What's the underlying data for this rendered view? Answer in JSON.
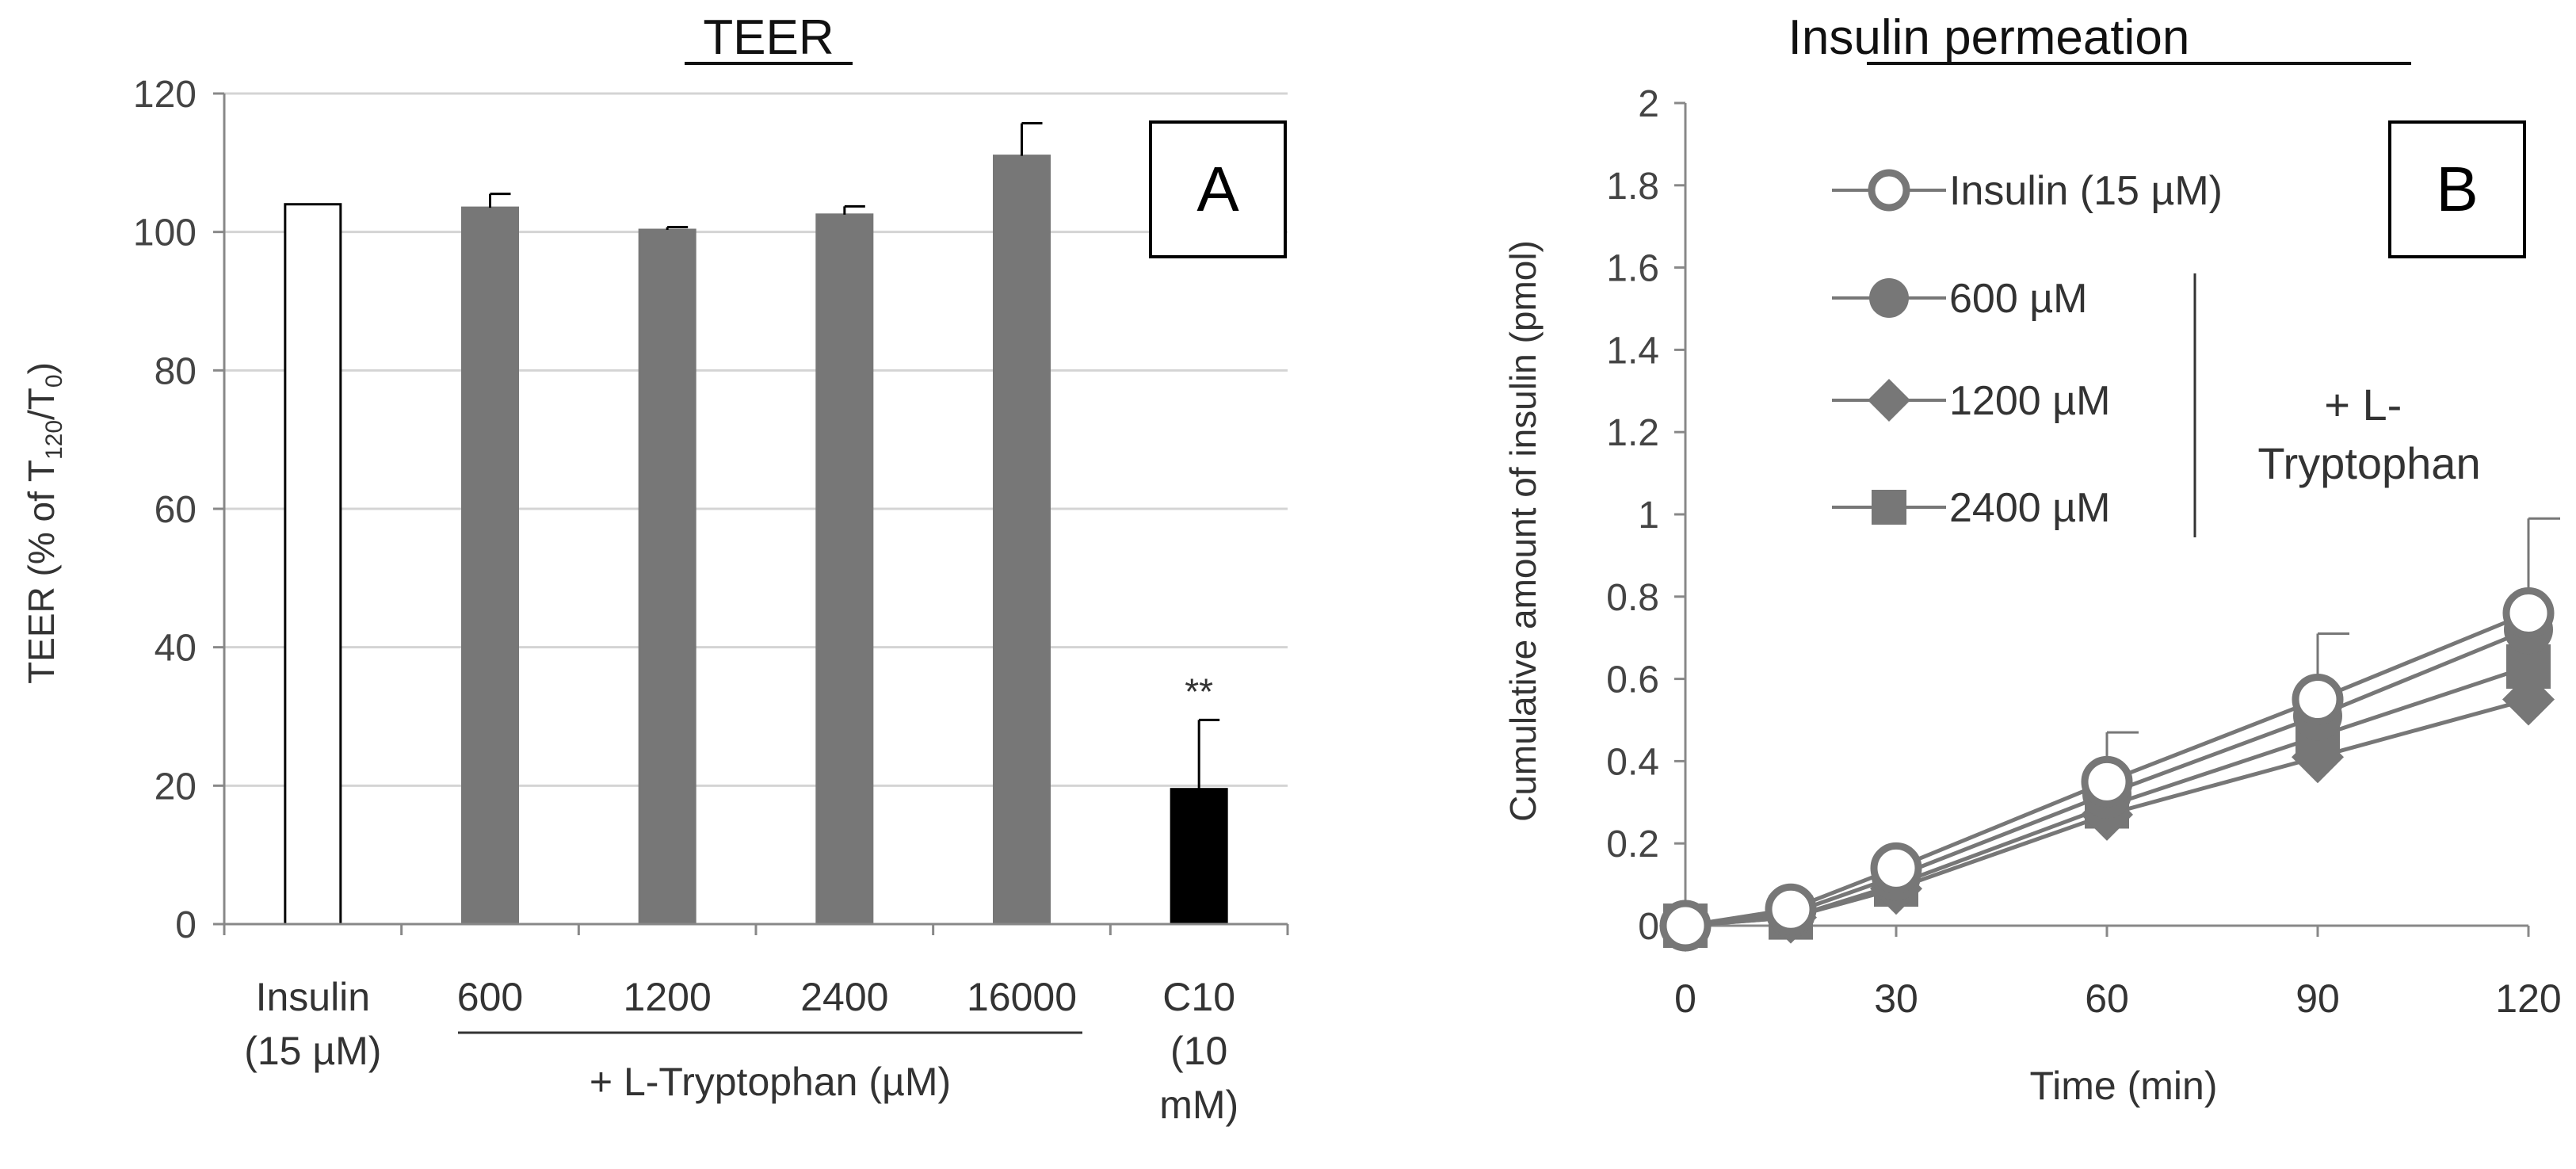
{
  "chart_data": [
    {
      "panel": "A",
      "type": "bar",
      "title": "TEER",
      "ylabel_parts": {
        "prefix": "TEER (% of T",
        "sub1": "120",
        "mid": "/T",
        "sub2": "0",
        "suffix": ")"
      },
      "ylim": [
        0,
        120
      ],
      "yticks": [
        0,
        20,
        40,
        60,
        80,
        100,
        120
      ],
      "categories": [
        {
          "lines": [
            "Insulin",
            "(15 µM)"
          ],
          "value": 104,
          "error": 0,
          "fill": "#ffffff",
          "stroke": "#000000"
        },
        {
          "lines": [
            "600"
          ],
          "value": 103.5,
          "error": 2,
          "fill": "#777777",
          "stroke": "#777777"
        },
        {
          "lines": [
            "1200"
          ],
          "value": 100.3,
          "error": 0.4,
          "fill": "#777777",
          "stroke": "#777777"
        },
        {
          "lines": [
            "2400"
          ],
          "value": 102.5,
          "error": 1.2,
          "fill": "#777777",
          "stroke": "#777777"
        },
        {
          "lines": [
            "16000"
          ],
          "value": 111,
          "error": 4.7,
          "fill": "#777777",
          "stroke": "#777777"
        },
        {
          "lines": [
            "C10",
            "(10",
            "mM)"
          ],
          "value": 19.5,
          "error": 10,
          "fill": "#000000",
          "stroke": "#000000",
          "annotation": "**"
        }
      ],
      "group_label": "+ L-Tryptophan (µM)",
      "panel_label": "A"
    },
    {
      "panel": "B",
      "type": "line",
      "title": "Insulin permeation",
      "xlabel": "Time (min)",
      "ylabel": "Cumulative amount of insulin (pmol)",
      "xlim": [
        0,
        120
      ],
      "xticks": [
        0,
        30,
        60,
        90,
        120
      ],
      "ylim": [
        0,
        2
      ],
      "yticks": [
        "0",
        "0.2",
        "0.4",
        "0.6",
        "0.8",
        "1",
        "1.2",
        "1.4",
        "1.6",
        "1.8",
        "2"
      ],
      "x": [
        0,
        15,
        30,
        60,
        90,
        120
      ],
      "series": [
        {
          "name": "Insulin (15 µM)",
          "marker": "open-circle",
          "values": [
            0,
            0.04,
            0.14,
            0.35,
            0.55,
            0.76
          ],
          "errors": [
            0,
            0,
            0,
            0.12,
            0.16,
            0.23
          ]
        },
        {
          "name": "600 µM",
          "marker": "filled-circle",
          "values": [
            0,
            0.03,
            0.12,
            0.32,
            0.51,
            0.72
          ],
          "errors": [
            0,
            0,
            0,
            0,
            0,
            0
          ]
        },
        {
          "name": "1200 µM",
          "marker": "diamond",
          "values": [
            0,
            0.02,
            0.09,
            0.27,
            0.41,
            0.55
          ],
          "errors": [
            0,
            0,
            0,
            0,
            0,
            0
          ]
        },
        {
          "name": "2400 µM",
          "marker": "square",
          "values": [
            0,
            0.02,
            0.1,
            0.29,
            0.46,
            0.63
          ],
          "errors": [
            0,
            0,
            0,
            0,
            0,
            0
          ]
        }
      ],
      "group_label_lines": [
        "+ L-",
        "Tryptophan"
      ],
      "panel_label": "B"
    }
  ]
}
